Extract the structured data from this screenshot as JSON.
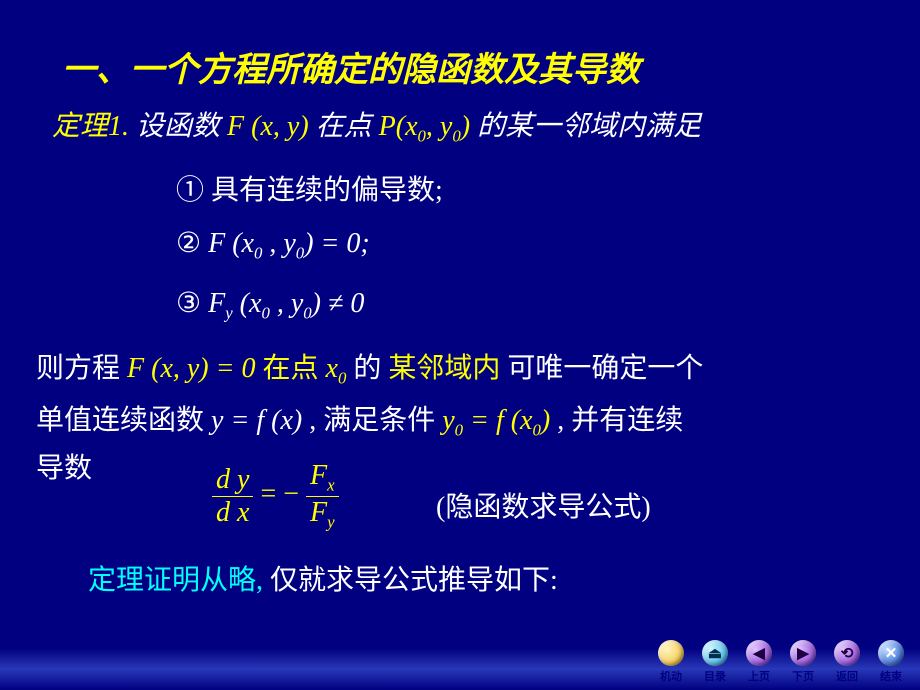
{
  "title": "一、一个方程所确定的隐函数及其导数",
  "theorem_label": "定理1.",
  "line1_a": " 设函数",
  "line1_fxy": "F (x, y)",
  "line1_b": "在点 ",
  "line1_pxy": "P(x",
  "line1_pxy2": ", y",
  "line1_pxy3": ")",
  "line1_c": "的某一邻域内满足",
  "cond1_num": "①",
  "cond1_txt": " 具有连续的偏导数;",
  "cond2_num": "②",
  "cond2_math": "F (x",
  "cond2_math2": " , y",
  "cond2_math3": ") = 0;",
  "cond3_num": "③",
  "cond3_math_f": "F",
  "cond3_math_y": "y",
  "cond3_math": " (x",
  "cond3_math2": " , y",
  "cond3_math3": ") ≠ 0",
  "line4_a": "则方程 ",
  "line4_eq": "F (x, y) = 0",
  "line4_b": "在点",
  "line4_x0": " x",
  "line4_c": " 的",
  "line4_d": "某邻域内",
  "line4_e": "可唯一确定一个",
  "line5_a": "单值连续函数",
  "line5_eq1": " y = f (x)",
  "line5_b": " , 满足条件",
  "line5_eq2a": " y",
  "line5_eq2b": " = f (x",
  "line5_eq2c": ")",
  "line5_c": ", 并有连续",
  "line6": "导数",
  "frac_dy": "d y",
  "frac_dx": "d x",
  "frac_eq": " = − ",
  "frac_fx_f": "F",
  "frac_fx_x": "x",
  "frac_fy_f": "F",
  "frac_fy_y": "y",
  "formula_label": "(隐函数求导公式)",
  "line7_a": "定理证明从略,",
  "line7_b": " 仅就求导公式推导如下:",
  "nav": {
    "jidong": "机动",
    "mulu": "目录",
    "shangye": "上页",
    "xiaye": "下页",
    "fanhui": "返回",
    "jieshu": "结束"
  }
}
